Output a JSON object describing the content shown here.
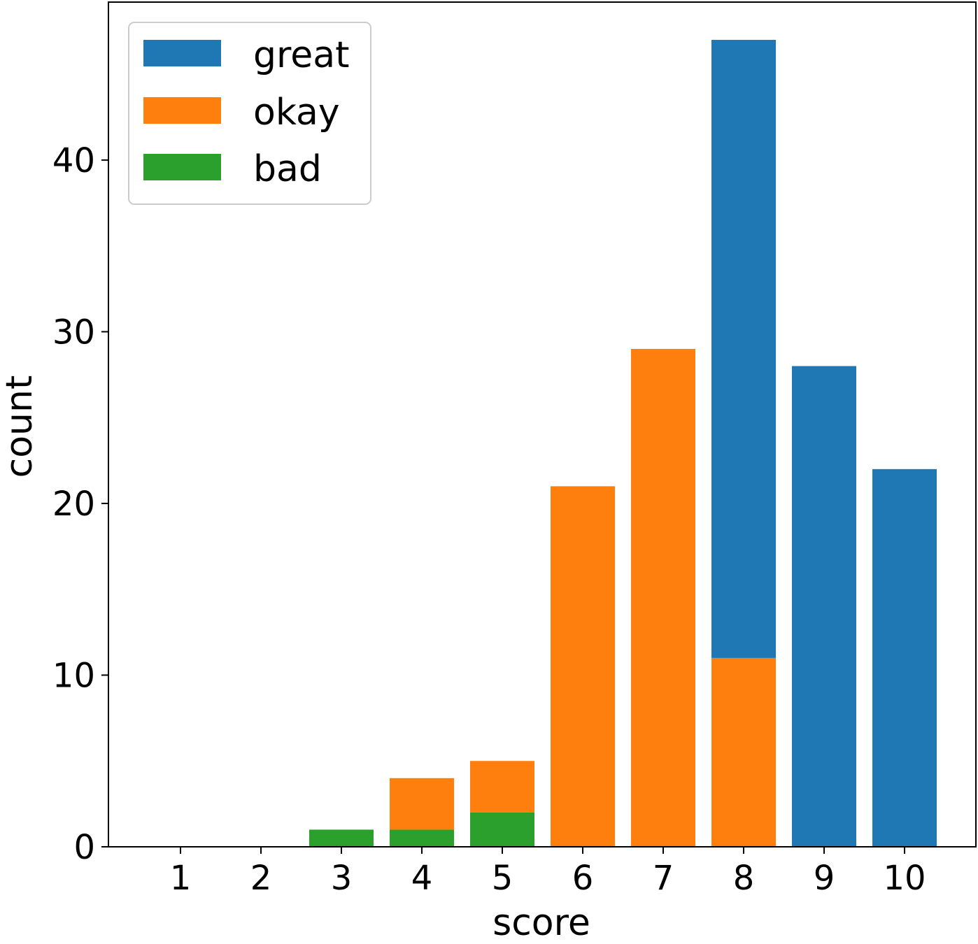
{
  "chart_data": {
    "type": "bar",
    "stacked": true,
    "title": "",
    "xlabel": "score",
    "ylabel": "count",
    "categories": [
      "1",
      "2",
      "3",
      "4",
      "5",
      "6",
      "7",
      "8",
      "9",
      "10"
    ],
    "series": [
      {
        "name": "bad",
        "color": "#2ca02c",
        "values": [
          0,
          0,
          1,
          1,
          2,
          0,
          0,
          0,
          0,
          0
        ]
      },
      {
        "name": "okay",
        "color": "#ff7f0e",
        "values": [
          0,
          0,
          0,
          3,
          3,
          21,
          29,
          11,
          0,
          0
        ]
      },
      {
        "name": "great",
        "color": "#1f77b4",
        "values": [
          0,
          0,
          0,
          0,
          0,
          0,
          0,
          36,
          28,
          22
        ]
      }
    ],
    "legend": {
      "position": "top-left",
      "entries": [
        "great",
        "okay",
        "bad"
      ]
    },
    "ylim": [
      0,
      49.2
    ],
    "yticks": [
      "0",
      "10",
      "20",
      "30",
      "40"
    ],
    "grid": false
  }
}
